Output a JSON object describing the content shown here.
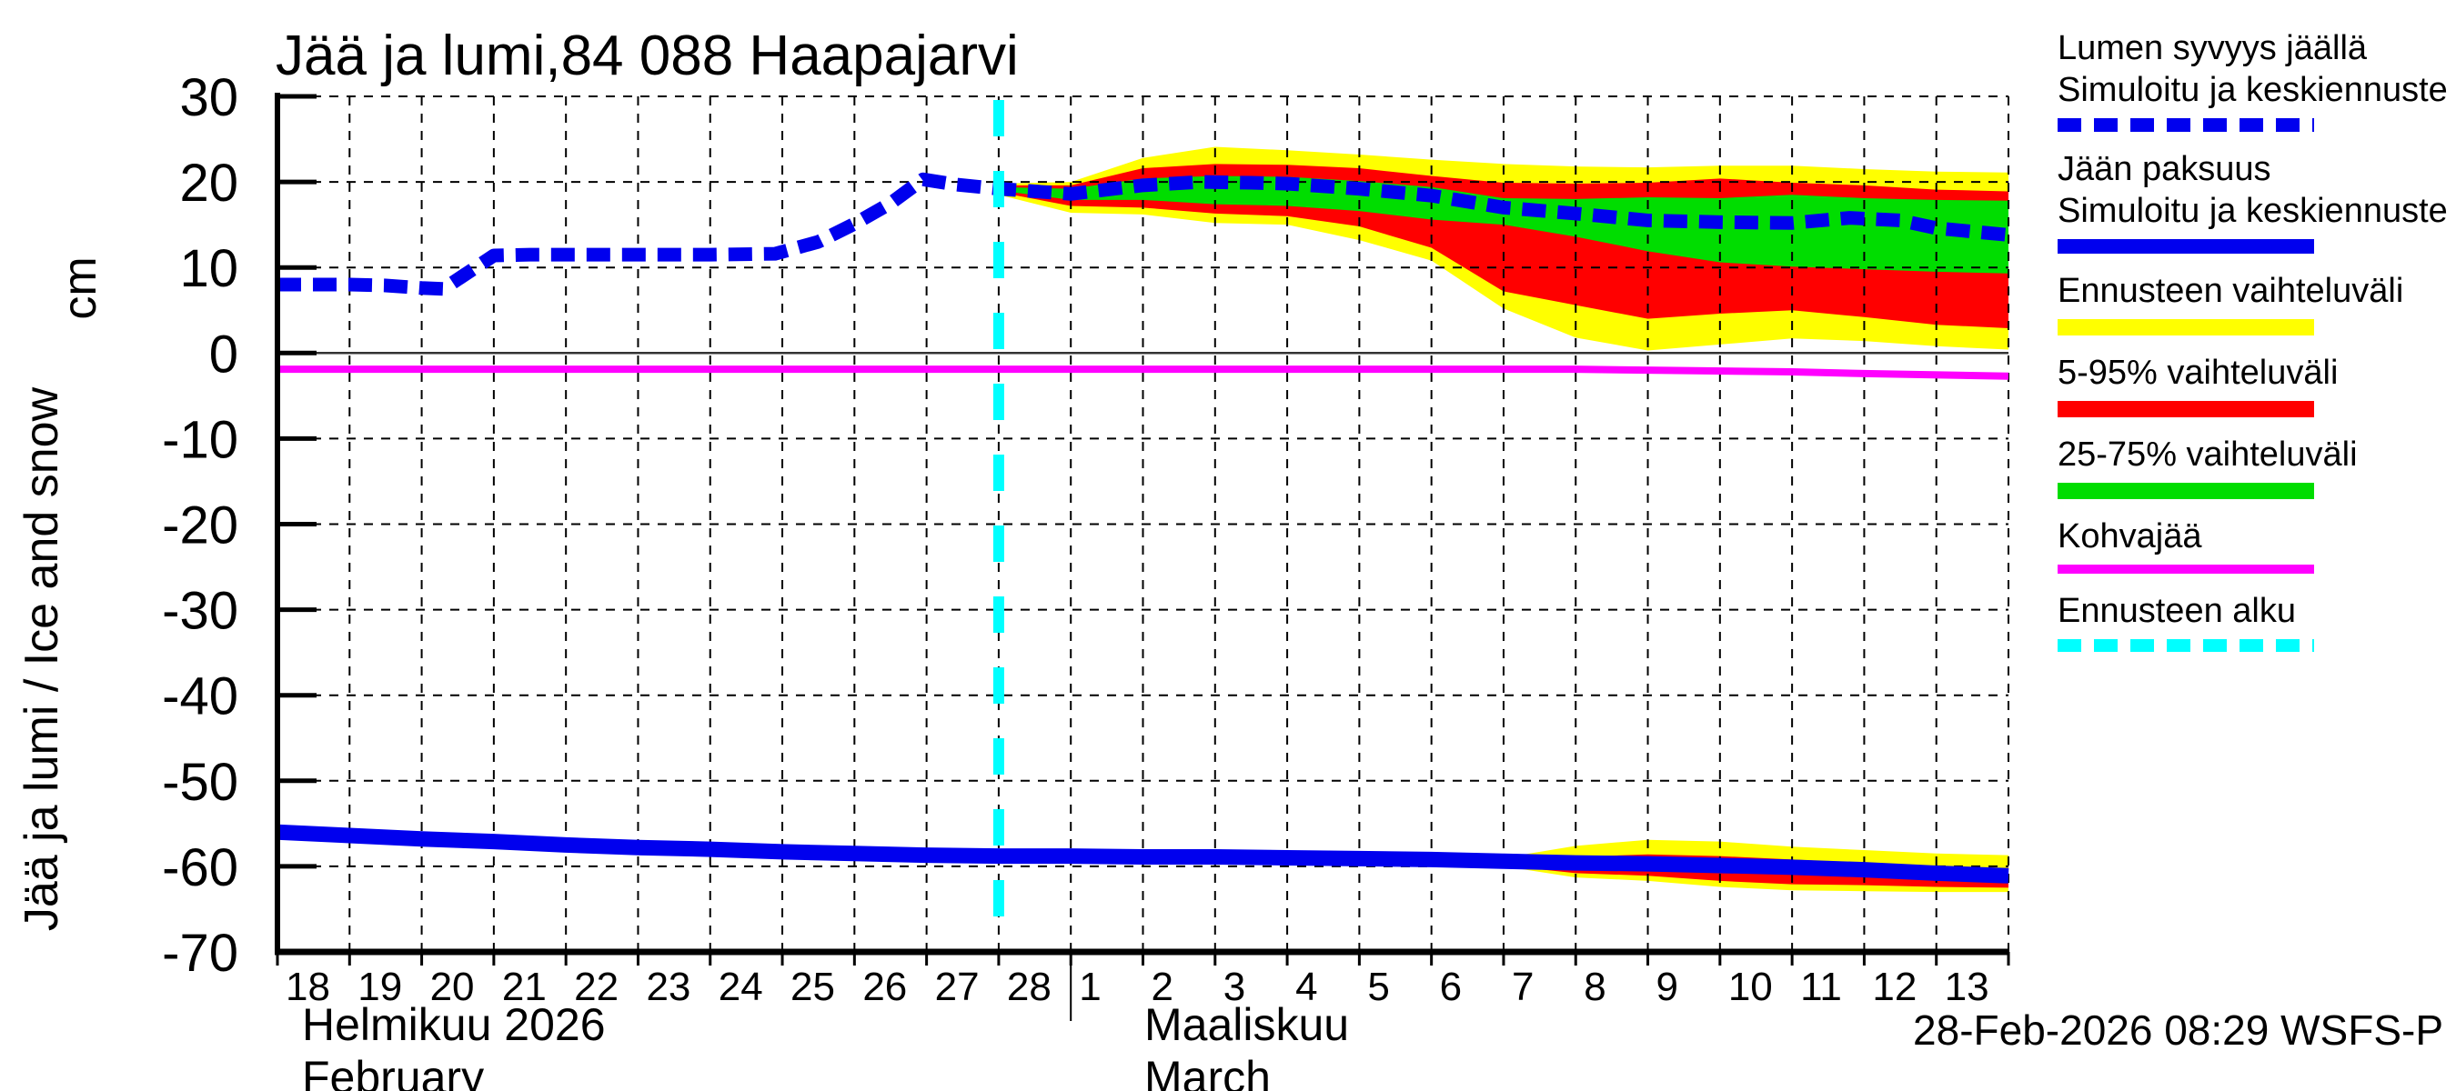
{
  "title": "Jää ja lumi,84 088 Haapajarvi",
  "y_axis": {
    "label": "Jää ja lumi / Ice and snow",
    "unit": "cm",
    "ticks": [
      30,
      20,
      10,
      0,
      -10,
      -20,
      -30,
      -40,
      -50,
      -60,
      -70
    ]
  },
  "x_axis": {
    "feb_days": [
      "18",
      "19",
      "20",
      "21",
      "22",
      "23",
      "24",
      "25",
      "26",
      "27",
      "28"
    ],
    "mar_days": [
      "1",
      "2",
      "3",
      "4",
      "5",
      "6",
      "7",
      "8",
      "9",
      "10",
      "11",
      "12",
      "13"
    ],
    "month1_fi": "Helmikuu  2026",
    "month1_en": "February",
    "month2_fi": "Maaliskuu",
    "month2_en": "March"
  },
  "timestamp": "28-Feb-2026 08:29 WSFS-P",
  "colors": {
    "axis": "#000000",
    "grid": "#000000",
    "zero_line": "#333333",
    "background": "#ffffff",
    "forecast_line": "#00ffff",
    "median_blue": "#0000ee",
    "range_yellow": "#ffff00",
    "p5_95_red": "#ff0000",
    "p25_75_green": "#00dd00",
    "kohvajaa_magenta": "#ff00ff"
  },
  "legend": [
    {
      "label_lines": [
        "Lumen syvyys jäällä",
        "Simuloitu ja keskiennuste"
      ],
      "color": "#0000ee",
      "style": "dashed",
      "thickness": 15
    },
    {
      "label_lines": [
        "Jään paksuus",
        "Simuloitu ja keskiennuste"
      ],
      "color": "#0000ee",
      "style": "solid",
      "thickness": 16
    },
    {
      "label_lines": [
        "Ennusteen vaihteluväli"
      ],
      "color": "#ffff00",
      "style": "solid",
      "thickness": 18
    },
    {
      "label_lines": [
        "5-95% vaihteluväli"
      ],
      "color": "#ff0000",
      "style": "solid",
      "thickness": 18
    },
    {
      "label_lines": [
        "25-75% vaihteluväli"
      ],
      "color": "#00dd00",
      "style": "solid",
      "thickness": 18
    },
    {
      "label_lines": [
        "Kohvajää"
      ],
      "color": "#ff00ff",
      "style": "solid",
      "thickness": 10
    },
    {
      "label_lines": [
        "Ennusteen alku"
      ],
      "color": "#00ffff",
      "style": "dashed",
      "thickness": 14
    }
  ],
  "chart_data": {
    "type": "line",
    "title": "Jää ja lumi,84 088 Haapajarvi",
    "ylabel": "Jää ja lumi / Ice and snow (cm)",
    "ylim": [
      -70,
      30
    ],
    "x_unit": "days since 18-Feb-2026",
    "x_day_count": 24,
    "forecast_start_day": 10,
    "grid": true,
    "legend_position": "right-outside",
    "series": [
      {
        "name": "snow_depth_on_ice_median",
        "style": "dashed",
        "color": "#0000ee",
        "width": 15,
        "points": [
          [
            0,
            8.0
          ],
          [
            0.5,
            8.0
          ],
          [
            1,
            8.0
          ],
          [
            1.5,
            7.9
          ],
          [
            2.0,
            7.6
          ],
          [
            2.3,
            7.5
          ],
          [
            3,
            11.4
          ],
          [
            3.5,
            11.5
          ],
          [
            4,
            11.5
          ],
          [
            5,
            11.5
          ],
          [
            6,
            11.5
          ],
          [
            6.9,
            11.6
          ],
          [
            7.5,
            13.0
          ],
          [
            8,
            15.1
          ],
          [
            8.5,
            17.5
          ],
          [
            8.95,
            20.3
          ],
          [
            9.4,
            19.7
          ],
          [
            10,
            19.2
          ],
          [
            11,
            18.6
          ],
          [
            12,
            19.6
          ],
          [
            12.8,
            20.0
          ],
          [
            13.5,
            19.9
          ],
          [
            14,
            19.8
          ],
          [
            15,
            19.2
          ],
          [
            16,
            18.4
          ],
          [
            17,
            17.0
          ],
          [
            18,
            16.3
          ],
          [
            19,
            15.5
          ],
          [
            20,
            15.3
          ],
          [
            21,
            15.2
          ],
          [
            21.8,
            15.8
          ],
          [
            22.5,
            15.5
          ],
          [
            23,
            14.6
          ],
          [
            24,
            13.8
          ]
        ]
      },
      {
        "name": "ice_thickness_median",
        "style": "solid",
        "color": "#0000ee",
        "width": 17,
        "points": [
          [
            0,
            -56.0
          ],
          [
            1,
            -56.4
          ],
          [
            2,
            -56.8
          ],
          [
            3,
            -57.1
          ],
          [
            4,
            -57.5
          ],
          [
            5,
            -57.8
          ],
          [
            6,
            -58.0
          ],
          [
            7,
            -58.3
          ],
          [
            8,
            -58.5
          ],
          [
            9,
            -58.7
          ],
          [
            10,
            -58.8
          ],
          [
            11,
            -58.8
          ],
          [
            12,
            -58.9
          ],
          [
            13,
            -58.9
          ],
          [
            14,
            -59.0
          ],
          [
            15,
            -59.1
          ],
          [
            16,
            -59.2
          ],
          [
            17,
            -59.4
          ],
          [
            18,
            -59.6
          ],
          [
            19,
            -59.7
          ],
          [
            20,
            -59.9
          ],
          [
            21,
            -60.1
          ],
          [
            22,
            -60.4
          ],
          [
            23,
            -60.8
          ],
          [
            24,
            -61.1
          ]
        ]
      },
      {
        "name": "kohvajaa_frazil_ice",
        "style": "solid",
        "color": "#ff00ff",
        "width": 8,
        "points": [
          [
            0,
            -1.9
          ],
          [
            18,
            -1.9
          ],
          [
            19,
            -2.0
          ],
          [
            21,
            -2.2
          ],
          [
            22,
            -2.4
          ],
          [
            24,
            -2.7
          ]
        ]
      }
    ],
    "bands": [
      {
        "name": "snow_forecast_range",
        "color": "#ffff00",
        "points": [
          [
            10,
            18.5,
            19.8
          ],
          [
            11,
            16.4,
            20.0
          ],
          [
            12,
            16.2,
            22.8
          ],
          [
            13,
            15.2,
            24.1
          ],
          [
            14,
            15.0,
            23.7
          ],
          [
            15,
            13.2,
            23.2
          ],
          [
            16,
            10.8,
            22.6
          ],
          [
            17,
            5.2,
            22.1
          ],
          [
            18,
            1.8,
            21.8
          ],
          [
            19,
            0.3,
            21.7
          ],
          [
            20,
            1.0,
            21.9
          ],
          [
            21,
            1.7,
            21.9
          ],
          [
            22,
            1.4,
            21.5
          ],
          [
            23,
            0.8,
            21.2
          ],
          [
            24,
            0.4,
            21.1
          ]
        ]
      },
      {
        "name": "snow_5_95_range",
        "color": "#ff0000",
        "points": [
          [
            10,
            18.8,
            19.6
          ],
          [
            11,
            17.2,
            19.6
          ],
          [
            12,
            17.0,
            21.6
          ],
          [
            13,
            16.3,
            22.1
          ],
          [
            14,
            16.0,
            22.0
          ],
          [
            15,
            14.8,
            21.6
          ],
          [
            16,
            12.3,
            20.7
          ],
          [
            17,
            7.2,
            19.9
          ],
          [
            18,
            5.6,
            19.8
          ],
          [
            19,
            4.0,
            19.9
          ],
          [
            20,
            4.6,
            20.4
          ],
          [
            21,
            5.0,
            19.9
          ],
          [
            22,
            4.2,
            19.6
          ],
          [
            23,
            3.3,
            19.1
          ],
          [
            24,
            2.9,
            18.9
          ]
        ]
      },
      {
        "name": "snow_25_75_range",
        "color": "#00dd00",
        "points": [
          [
            10,
            19.0,
            19.4
          ],
          [
            11,
            17.9,
            19.2
          ],
          [
            12,
            17.9,
            20.4
          ],
          [
            13,
            17.4,
            20.7
          ],
          [
            14,
            17.2,
            20.6
          ],
          [
            15,
            16.6,
            20.1
          ],
          [
            16,
            15.6,
            19.4
          ],
          [
            17,
            15.0,
            18.1
          ],
          [
            18,
            13.6,
            18.0
          ],
          [
            19,
            11.9,
            18.2
          ],
          [
            20,
            10.6,
            18.1
          ],
          [
            21,
            10.1,
            18.5
          ],
          [
            22,
            9.8,
            18.1
          ],
          [
            23,
            9.5,
            17.9
          ],
          [
            24,
            9.3,
            17.8
          ]
        ]
      },
      {
        "name": "ice_forecast_range",
        "color": "#ffff00",
        "points": [
          [
            16,
            -59.6,
            -58.9
          ],
          [
            17,
            -60.0,
            -59.0
          ],
          [
            18,
            -61.3,
            -57.6
          ],
          [
            19,
            -61.7,
            -56.9
          ],
          [
            20,
            -62.4,
            -57.1
          ],
          [
            21,
            -62.8,
            -57.7
          ],
          [
            22,
            -62.9,
            -58.1
          ],
          [
            23,
            -63.0,
            -58.5
          ],
          [
            24,
            -63.0,
            -58.7
          ]
        ]
      },
      {
        "name": "ice_5_95_range",
        "color": "#ff0000",
        "points": [
          [
            16,
            -59.5,
            -59.0
          ],
          [
            17,
            -59.9,
            -59.1
          ],
          [
            18,
            -60.8,
            -58.9
          ],
          [
            19,
            -61.1,
            -58.6
          ],
          [
            20,
            -61.7,
            -58.8
          ],
          [
            21,
            -62.1,
            -59.2
          ],
          [
            22,
            -62.2,
            -59.6
          ],
          [
            23,
            -62.4,
            -60.0
          ],
          [
            24,
            -62.5,
            -60.2
          ]
        ]
      }
    ]
  }
}
